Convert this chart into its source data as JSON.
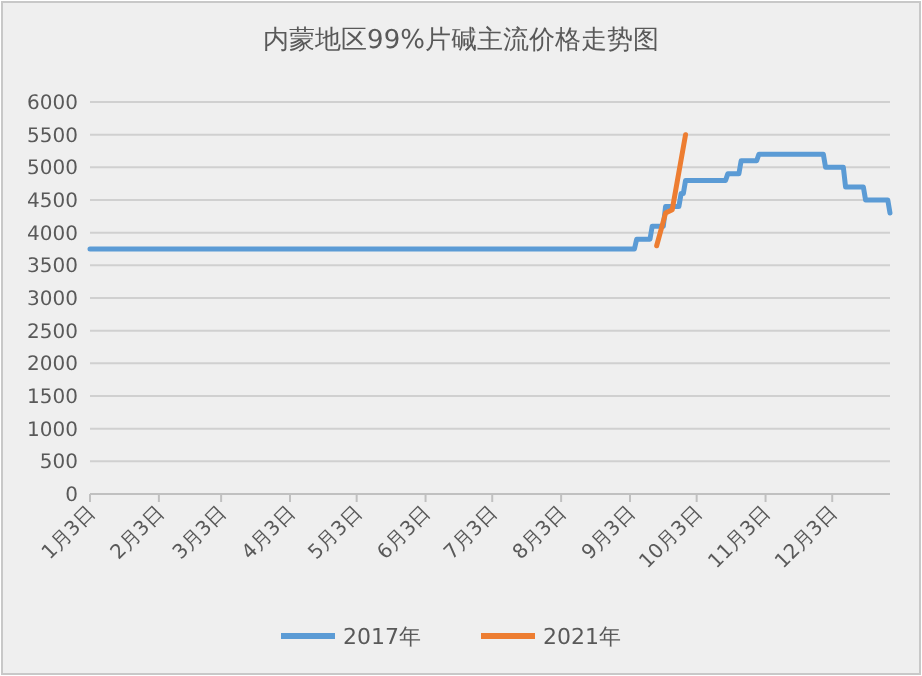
{
  "chart_data": {
    "type": "line",
    "title": "内蒙地区99%片碱主流价格走势图",
    "legend": "bottom",
    "grid": "y",
    "marker": "none",
    "line_style": "solid",
    "xlim": [
      "--01-03",
      "--12-29"
    ],
    "xticks": [
      {
        "value": "--01-03",
        "label": "1月3日"
      },
      {
        "value": "--02-03",
        "label": "2月3日"
      },
      {
        "value": "--03-03",
        "label": "3月3日"
      },
      {
        "value": "--04-03",
        "label": "4月3日"
      },
      {
        "value": "--05-03",
        "label": "5月3日"
      },
      {
        "value": "--06-03",
        "label": "6月3日"
      },
      {
        "value": "--07-03",
        "label": "7月3日"
      },
      {
        "value": "--08-03",
        "label": "8月3日"
      },
      {
        "value": "--09-03",
        "label": "9月3日"
      },
      {
        "value": "--10-03",
        "label": "10月3日"
      },
      {
        "value": "--11-03",
        "label": "11月3日"
      },
      {
        "value": "--12-03",
        "label": "12月3日"
      }
    ],
    "ylim": [
      0,
      6000
    ],
    "yticks": [
      0,
      500,
      1000,
      1500,
      2000,
      2500,
      3000,
      3500,
      4000,
      4500,
      5000,
      5500,
      6000
    ],
    "series": [
      {
        "name": "2017年",
        "color": "#5b9bd5",
        "x": [
          "--01-03",
          "--09-05",
          "--09-06",
          "--09-12",
          "--09-13",
          "--09-18",
          "--09-19",
          "--09-25",
          "--09-26",
          "--09-27",
          "--09-28",
          "--10-16",
          "--10-17",
          "--10-22",
          "--10-23",
          "--10-30",
          "--10-31",
          "--11-29",
          "--11-30",
          "--12-08",
          "--12-09",
          "--12-17",
          "--12-18",
          "--12-28",
          "--12-29"
        ],
        "values": [
          3750,
          3750,
          3900,
          3900,
          4100,
          4100,
          4400,
          4400,
          4600,
          4600,
          4800,
          4800,
          4900,
          4900,
          5100,
          5100,
          5200,
          5200,
          5000,
          5000,
          4700,
          4700,
          4500,
          4500,
          4300
        ]
      },
      {
        "name": "2021年",
        "color": "#ed7d31",
        "x": [
          "--09-15",
          "--09-19",
          "--09-22",
          "--09-28"
        ],
        "values": [
          3800,
          4300,
          4350,
          5500
        ]
      }
    ]
  }
}
